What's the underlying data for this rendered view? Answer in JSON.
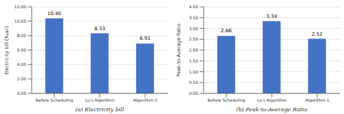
{
  "chart_data": [
    {
      "type": "bar",
      "categories": [
        "Before Scheduling",
        "Lu's Algorithm",
        "Algorithm 1"
      ],
      "values": [
        10.4,
        8.33,
        6.91
      ],
      "value_labels": [
        "10.40",
        "8.33",
        "6.91"
      ],
      "data_labels": true,
      "color": "#4472C4",
      "ylabel": "Electricity bill (Yuan)",
      "xlabel": "(a) Electricity bill",
      "ylim": [
        0,
        12.0
      ],
      "yticks": [
        {
          "value": 0,
          "label": "0.00"
        },
        {
          "value": 2,
          "label": "2.00"
        },
        {
          "value": 4,
          "label": "4.00"
        },
        {
          "value": 6,
          "label": "6.00"
        },
        {
          "value": 8,
          "label": "8.00"
        },
        {
          "value": 10,
          "label": "10.00"
        },
        {
          "value": 12,
          "label": "12.00"
        }
      ],
      "grid": true
    },
    {
      "type": "bar",
      "categories": [
        "Before Scheduling",
        "Lu's Algorithm",
        "Algorithm 1"
      ],
      "values": [
        2.66,
        3.34,
        2.52
      ],
      "data_labels": true,
      "color": "#4472C4",
      "ylabel": "Peak-to-Average Ratio",
      "xlabel": "(b) Peak-to-Average Ratio",
      "ylim": [
        0,
        4.0
      ],
      "yticks": [
        {
          "value": 0,
          "label": "0.00"
        },
        {
          "value": 0.5,
          "label": "0.50"
        },
        {
          "value": 1,
          "label": "1.00"
        },
        {
          "value": 1.5,
          "label": "1.50"
        },
        {
          "value": 2,
          "label": "2.00"
        },
        {
          "value": 2.5,
          "label": "2.50"
        },
        {
          "value": 3,
          "label": "3.00"
        },
        {
          "value": 3.5,
          "label": "3.50"
        },
        {
          "value": 4,
          "label": "4.00"
        }
      ],
      "grid": true
    }
  ]
}
